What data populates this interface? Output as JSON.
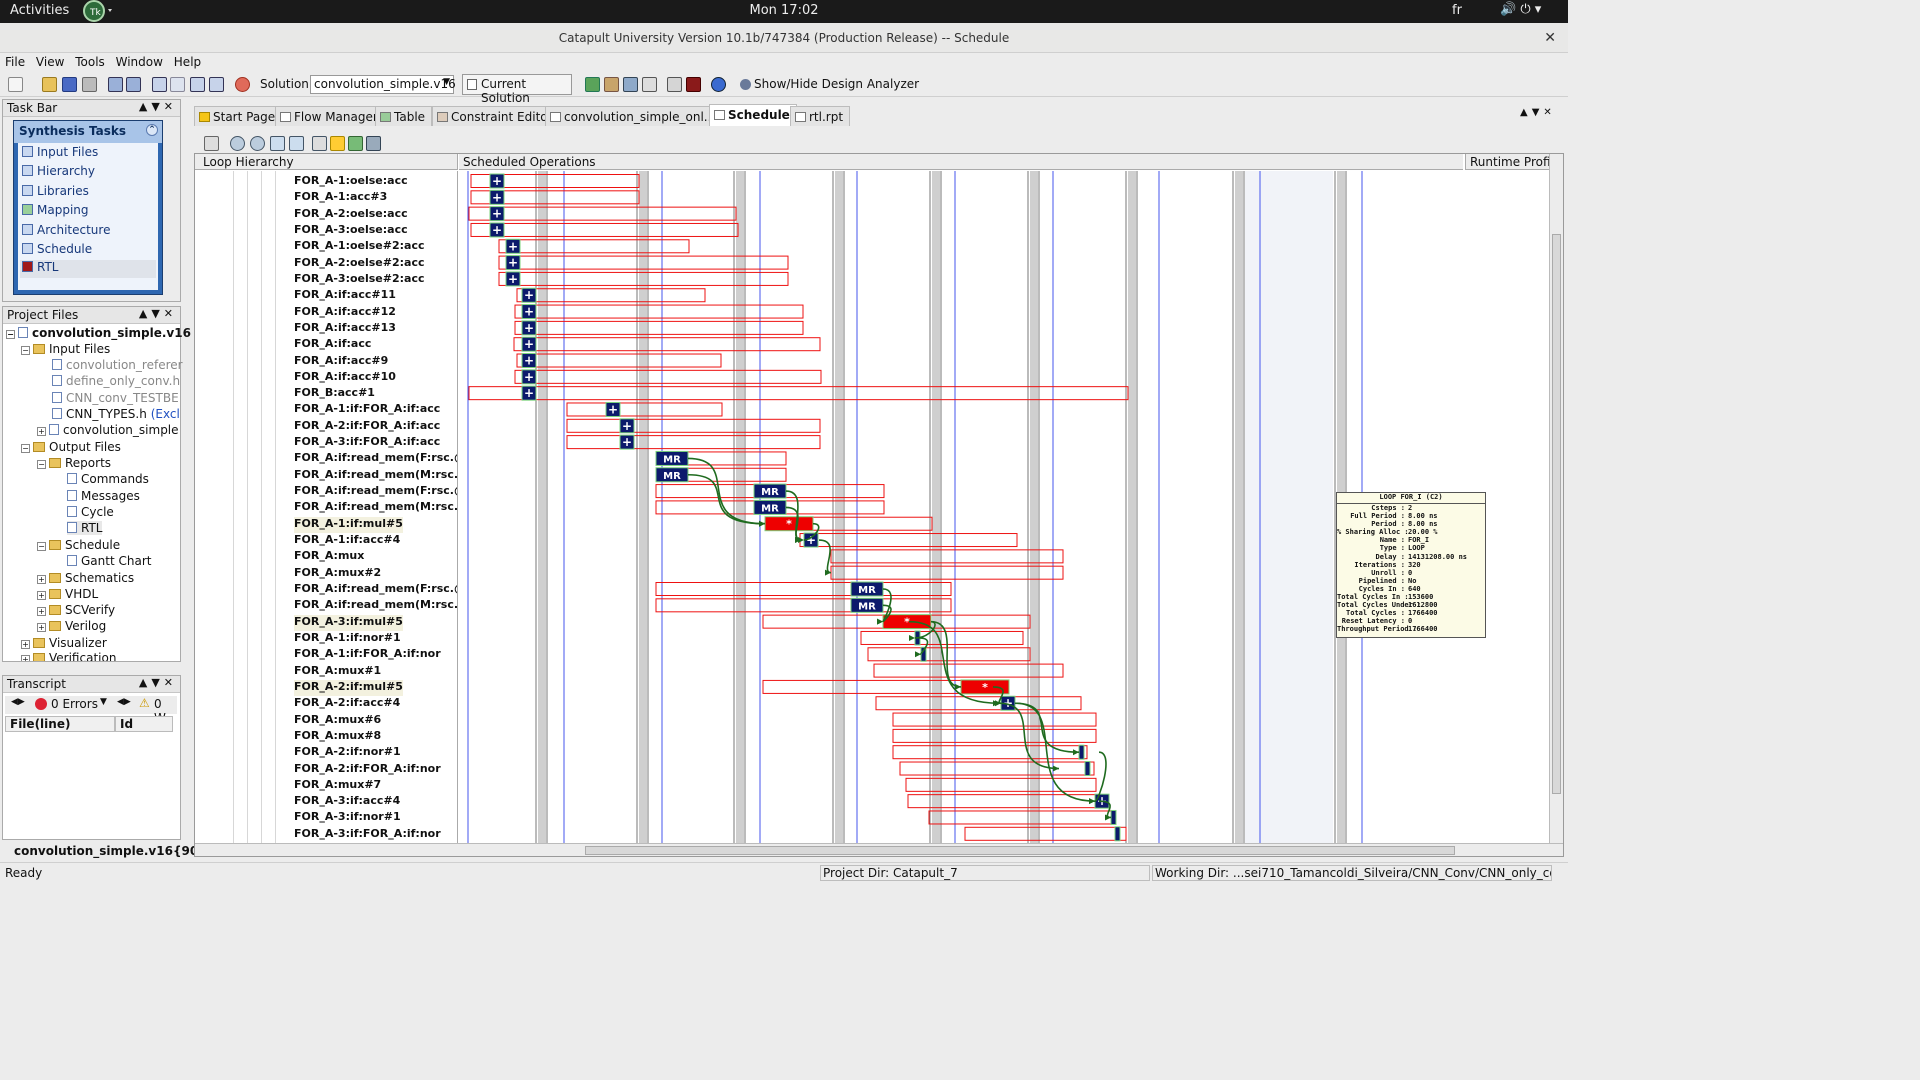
{
  "topbar": {
    "activities": "Activities",
    "clock": "Mon 17:02",
    "lang": "fr",
    "sys_icons": "🔊 ⏻ ▾"
  },
  "window": {
    "title": "Catapult University Version 10.1b/747384 (Production Release) -- Schedule"
  },
  "menu": [
    "File",
    "View",
    "Tools",
    "Window",
    "Help"
  ],
  "toolbar": {
    "solution_label": "Solution:",
    "solution_value": "convolution_simple.v16",
    "current_solution": "Current Solution",
    "show_hide": "Show/Hide Design Analyzer"
  },
  "taskbar": {
    "title": "Task Bar",
    "synth_title": "Synthesis Tasks",
    "items": [
      "Input Files",
      "Hierarchy",
      "Libraries",
      "Mapping",
      "Architecture",
      "Schedule",
      "RTL"
    ]
  },
  "projfiles": {
    "title": "Project Files",
    "root": "convolution_simple.v16",
    "input_files": "Input Files",
    "files": [
      "convolution_referer",
      "define_only_conv.h",
      "CNN_conv_TESTBE",
      "CNN_TYPES.h",
      "convolution_simple"
    ],
    "excluded": "(Excl",
    "output_files": "Output Files",
    "reports": "Reports",
    "report_items": [
      "Commands",
      "Messages",
      "Cycle",
      "RTL"
    ],
    "schedule": "Schedule",
    "gantt": "Gantt Chart",
    "schematics": "Schematics",
    "vhdl": "VHDL",
    "scverify": "SCVerify",
    "verilog": "Verilog",
    "visualizer": "Visualizer",
    "verification": "Verification"
  },
  "transcript": {
    "title": "Transcript",
    "errors": "0 Errors",
    "warnings": "0 W",
    "col1": "File(line)",
    "col2": "Id"
  },
  "bottom_project": "convolution_simple.v16{90}",
  "tabs": [
    "Start Page",
    "Flow Manager",
    "Table",
    "Constraint Editor",
    "convolution_simple_onl...",
    "Schedule",
    "rtl.rpt"
  ],
  "schedule": {
    "loop_header": "Loop Hierarchy",
    "ops_header": "Scheduled Operations",
    "runtime_header": "Runtime Profil",
    "ops": [
      "FOR_A-1:oelse:acc",
      "FOR_A-1:acc#3",
      "FOR_A-2:oelse:acc",
      "FOR_A-3:oelse:acc",
      "FOR_A-1:oelse#2:acc",
      "FOR_A-2:oelse#2:acc",
      "FOR_A-3:oelse#2:acc",
      "FOR_A:if:acc#11",
      "FOR_A:if:acc#12",
      "FOR_A:if:acc#13",
      "FOR_A:if:acc",
      "FOR_A:if:acc#9",
      "FOR_A:if:acc#10",
      "FOR_B:acc#1",
      "FOR_A-1:if:FOR_A:if:acc",
      "FOR_A-2:if:FOR_A:if:acc",
      "FOR_A-3:if:FOR_A:if:acc",
      "FOR_A:if:read_mem(F:rsc.@",
      "FOR_A:if:read_mem(M:rsc.@",
      "FOR_A:if:read_mem(F:rsc.@",
      "FOR_A:if:read_mem(M:rsc.@",
      "FOR_A-1:if:mul#5",
      "FOR_A-1:if:acc#4",
      "FOR_A:mux",
      "FOR_A:mux#2",
      "FOR_A:if:read_mem(F:rsc.@",
      "FOR_A:if:read_mem(M:rsc.@",
      "FOR_A-3:if:mul#5",
      "FOR_A-1:if:nor#1",
      "FOR_A-1:if:FOR_A:if:nor",
      "FOR_A:mux#1",
      "FOR_A-2:if:mul#5",
      "FOR_A-2:if:acc#4",
      "FOR_A:mux#6",
      "FOR_A:mux#8",
      "FOR_A-2:if:nor#1",
      "FOR_A-2:if:FOR_A:if:nor",
      "FOR_A:mux#7",
      "FOR_A-3:if:acc#4",
      "FOR_A-3:if:nor#1",
      "FOR_A-3:if:FOR_A:if:nor"
    ],
    "highlighted_ops": [
      21,
      27,
      31
    ],
    "op_labels": {
      "add": "+",
      "mem": "MR",
      "mul": "*"
    }
  },
  "tooltip": {
    "title": "LOOP FOR_I (C2)",
    "rows": [
      [
        "Csteps",
        "2"
      ],
      [
        "Full Period",
        "8.00 ns"
      ],
      [
        "Period",
        "8.00 ns"
      ],
      [
        "% Sharing Alloc",
        "20.00 %"
      ],
      [
        "Name",
        "FOR_I"
      ],
      [
        "Type",
        "LOOP"
      ],
      [
        "Delay",
        "14131208.00 ns"
      ],
      [
        "Iterations",
        "320"
      ],
      [
        "Unroll",
        "0"
      ],
      [
        "Pipelined",
        "No"
      ],
      [
        "Cycles In",
        "640"
      ],
      [
        "Total Cycles In",
        "153600"
      ],
      [
        "Total Cycles Under",
        "1612800"
      ],
      [
        "Total Cycles",
        "1766400"
      ],
      [
        "Reset Latency",
        "0"
      ],
      [
        "Throughput Period",
        "1766400"
      ]
    ]
  },
  "status": {
    "ready": "Ready",
    "project_dir": "Project Dir: Catapult_7",
    "working_dir": "Working Dir: ...sei710_Tamancoldi_Silveira/CNN_Conv/CNN_only_conv"
  },
  "colors": {
    "op_box": "#ee1111",
    "add_fill": "#0c1a6c",
    "mul_fill": "#ee0000",
    "cstep_line": "#4455ee",
    "dep_arrow": "#1f6b1f"
  }
}
